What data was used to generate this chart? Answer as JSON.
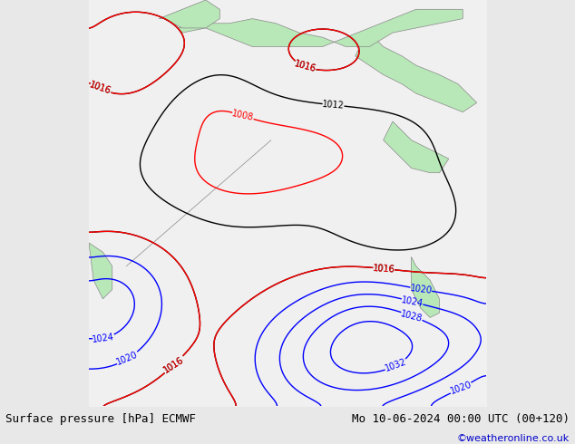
{
  "title_left": "Surface pressure [hPa] ECMWF",
  "title_right": "Mo 10-06-2024 00:00 UTC (00+120)",
  "credit": "©weatheronline.co.uk",
  "bg_color": "#e8e8e8",
  "map_bg": "#f0f0f0",
  "land_color": "#b8e8b8",
  "bottom_bar_color": "#d8d8d8",
  "label_fontsize": 9,
  "credit_color": "#0000cc",
  "isobar_blue_color": "#0000ff",
  "isobar_red_color": "#ff0000",
  "isobar_black_color": "#000000",
  "contour_linewidth": 1.0,
  "figsize": [
    6.34,
    4.9
  ],
  "dpi": 100
}
